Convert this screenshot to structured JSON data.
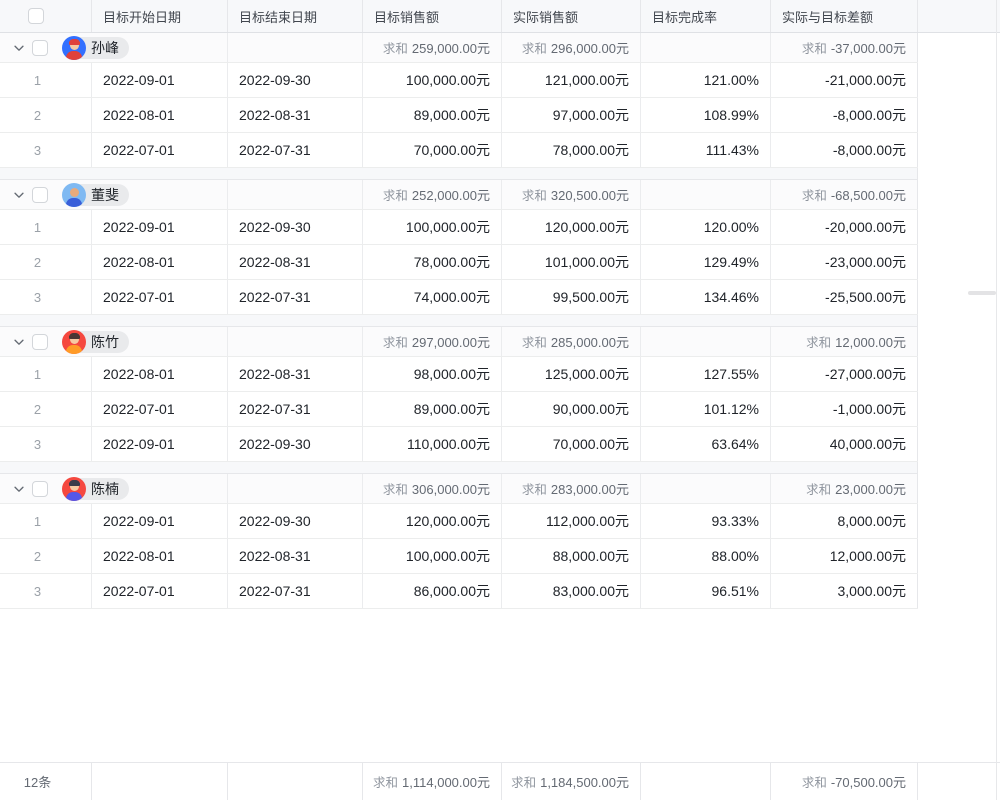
{
  "sum_label": "求和",
  "columns": [
    {
      "label": ""
    },
    {
      "label": "目标开始日期"
    },
    {
      "label": "目标结束日期"
    },
    {
      "label": "目标销售额"
    },
    {
      "label": "实际销售额"
    },
    {
      "label": "目标完成率"
    },
    {
      "label": "实际与目标差额"
    }
  ],
  "groups": [
    {
      "name": "孙峰",
      "avatar": {
        "bg": "#3370ff",
        "skin": "#f6c9a3",
        "hair": "#e0413c",
        "shirt": "#e0413c"
      },
      "sum_target": "259,000.00元",
      "sum_actual": "296,000.00元",
      "sum_diff": "-37,000.00元",
      "rows": [
        {
          "idx": "1",
          "start": "2022-09-01",
          "end": "2022-09-30",
          "target": "100,000.00元",
          "actual": "121,000.00元",
          "rate": "121.00%",
          "diff": "-21,000.00元"
        },
        {
          "idx": "2",
          "start": "2022-08-01",
          "end": "2022-08-31",
          "target": "89,000.00元",
          "actual": "97,000.00元",
          "rate": "108.99%",
          "diff": "-8,000.00元"
        },
        {
          "idx": "3",
          "start": "2022-07-01",
          "end": "2022-07-31",
          "target": "70,000.00元",
          "actual": "78,000.00元",
          "rate": "111.43%",
          "diff": "-8,000.00元"
        }
      ]
    },
    {
      "name": "董斐",
      "avatar": {
        "bg": "#7fb9f2",
        "skin": "#e8aa7c",
        "hair": "",
        "shirt": "#3a5fd9"
      },
      "sum_target": "252,000.00元",
      "sum_actual": "320,500.00元",
      "sum_diff": "-68,500.00元",
      "rows": [
        {
          "idx": "1",
          "start": "2022-09-01",
          "end": "2022-09-30",
          "target": "100,000.00元",
          "actual": "120,000.00元",
          "rate": "120.00%",
          "diff": "-20,000.00元"
        },
        {
          "idx": "2",
          "start": "2022-08-01",
          "end": "2022-08-31",
          "target": "78,000.00元",
          "actual": "101,000.00元",
          "rate": "129.49%",
          "diff": "-23,000.00元"
        },
        {
          "idx": "3",
          "start": "2022-07-01",
          "end": "2022-07-31",
          "target": "74,000.00元",
          "actual": "99,500.00元",
          "rate": "134.46%",
          "diff": "-25,500.00元"
        }
      ]
    },
    {
      "name": "陈竹",
      "avatar": {
        "bg": "#f5483f",
        "skin": "#f6c9a3",
        "hair": "#4a3734",
        "shirt": "#ff9b27"
      },
      "sum_target": "297,000.00元",
      "sum_actual": "285,000.00元",
      "sum_diff": "12,000.00元",
      "rows": [
        {
          "idx": "1",
          "start": "2022-08-01",
          "end": "2022-08-31",
          "target": "98,000.00元",
          "actual": "125,000.00元",
          "rate": "127.55%",
          "diff": "-27,000.00元"
        },
        {
          "idx": "2",
          "start": "2022-07-01",
          "end": "2022-07-31",
          "target": "89,000.00元",
          "actual": "90,000.00元",
          "rate": "101.12%",
          "diff": "-1,000.00元"
        },
        {
          "idx": "3",
          "start": "2022-09-01",
          "end": "2022-09-30",
          "target": "110,000.00元",
          "actual": "70,000.00元",
          "rate": "63.64%",
          "diff": "40,000.00元"
        }
      ]
    },
    {
      "name": "陈楠",
      "avatar": {
        "bg": "#f5483f",
        "skin": "#f6c9a3",
        "hair": "#3b3b4a",
        "shirt": "#5557e8"
      },
      "sum_target": "306,000.00元",
      "sum_actual": "283,000.00元",
      "sum_diff": "23,000.00元",
      "rows": [
        {
          "idx": "1",
          "start": "2022-09-01",
          "end": "2022-09-30",
          "target": "120,000.00元",
          "actual": "112,000.00元",
          "rate": "93.33%",
          "diff": "8,000.00元"
        },
        {
          "idx": "2",
          "start": "2022-08-01",
          "end": "2022-08-31",
          "target": "100,000.00元",
          "actual": "88,000.00元",
          "rate": "88.00%",
          "diff": "12,000.00元"
        },
        {
          "idx": "3",
          "start": "2022-07-01",
          "end": "2022-07-31",
          "target": "86,000.00元",
          "actual": "83,000.00元",
          "rate": "96.51%",
          "diff": "3,000.00元"
        }
      ]
    }
  ],
  "footer": {
    "count": "12条",
    "sum_target": "1,114,000.00元",
    "sum_actual": "1,184,500.00元",
    "sum_diff": "-70,500.00元"
  }
}
